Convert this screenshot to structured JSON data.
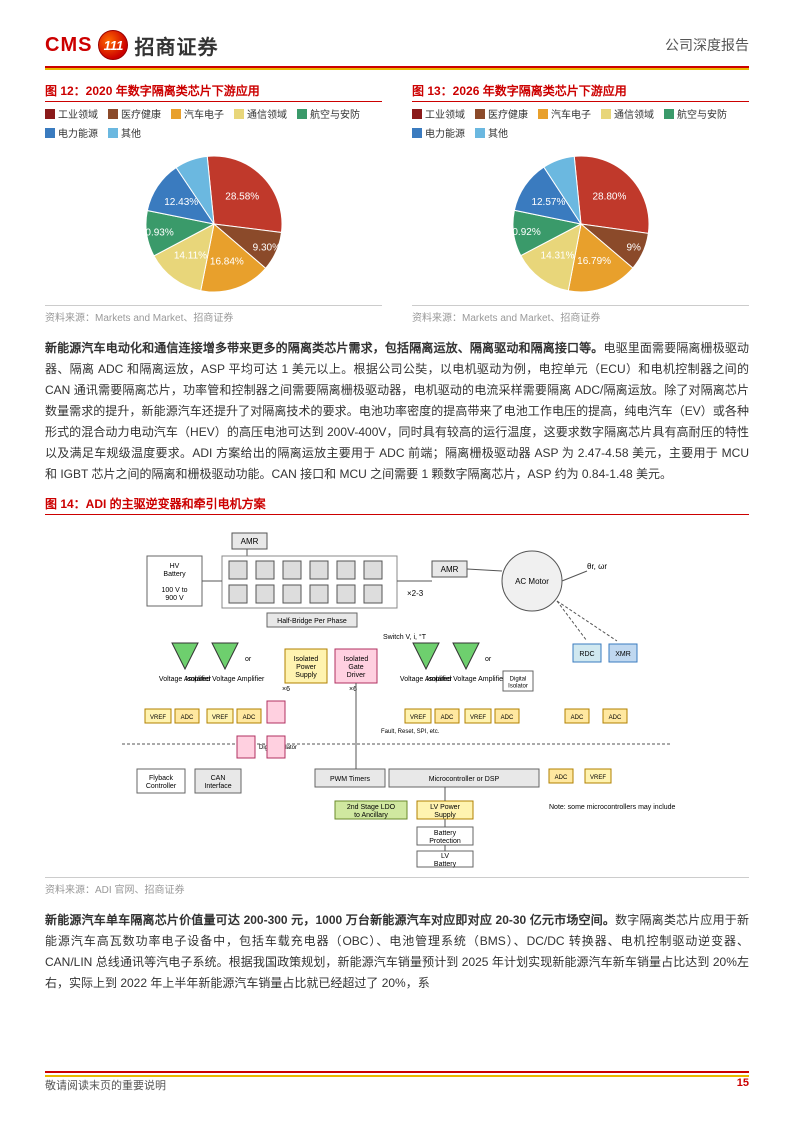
{
  "header": {
    "logo_cms": "CMS",
    "logo_badge": "111",
    "logo_cn": "招商证券",
    "doc_type": "公司深度报告"
  },
  "fig12": {
    "title": "图 12：2020 年数字隔离类芯片下游应用",
    "legend": [
      {
        "label": "工业领域",
        "color": "#8b1a1a"
      },
      {
        "label": "医疗健康",
        "color": "#8b4a2a"
      },
      {
        "label": "汽车电子",
        "color": "#e8a02c"
      },
      {
        "label": "通信领域",
        "color": "#e8d67a"
      },
      {
        "label": "航空与安防",
        "color": "#3a9a6a"
      },
      {
        "label": "电力能源",
        "color": "#3a7bbf"
      },
      {
        "label": "其他",
        "color": "#6bb8e0"
      }
    ],
    "pie": {
      "type": "pie",
      "slices": [
        {
          "label": "28.58%",
          "value": 28.58,
          "color": "#c0392b"
        },
        {
          "label": "9.30%",
          "value": 9.3,
          "color": "#8b4a2a"
        },
        {
          "label": "16.84%",
          "value": 16.84,
          "color": "#e8a02c"
        },
        {
          "label": "14.11%",
          "value": 14.11,
          "color": "#e8d67a"
        },
        {
          "label": "10.93%",
          "value": 10.93,
          "color": "#3a9a6a"
        },
        {
          "label": "12.43%",
          "value": 12.43,
          "color": "#3a7bbf"
        },
        {
          "label": "",
          "value": 7.81,
          "color": "#6bb8e0"
        }
      ],
      "radius": 68,
      "label_fontsize": 10,
      "label_color": "#ffffff"
    },
    "source": "资料来源：Markets and Market、招商证券"
  },
  "fig13": {
    "title": "图 13：2026 年数字隔离类芯片下游应用",
    "legend": [
      {
        "label": "工业领域",
        "color": "#8b1a1a"
      },
      {
        "label": "医疗健康",
        "color": "#8b4a2a"
      },
      {
        "label": "汽车电子",
        "color": "#e8a02c"
      },
      {
        "label": "通信领域",
        "color": "#e8d67a"
      },
      {
        "label": "航空与安防",
        "color": "#3a9a6a"
      },
      {
        "label": "电力能源",
        "color": "#3a7bbf"
      },
      {
        "label": "其他",
        "color": "#6bb8e0"
      }
    ],
    "pie": {
      "type": "pie",
      "slices": [
        {
          "label": "28.80%",
          "value": 28.8,
          "color": "#c0392b"
        },
        {
          "label": "9%",
          "value": 9.0,
          "color": "#8b4a2a"
        },
        {
          "label": "16.79%",
          "value": 16.79,
          "color": "#e8a02c"
        },
        {
          "label": "14.31%",
          "value": 14.31,
          "color": "#e8d67a"
        },
        {
          "label": "10.92%",
          "value": 10.92,
          "color": "#3a9a6a"
        },
        {
          "label": "12.57%",
          "value": 12.57,
          "color": "#3a7bbf"
        },
        {
          "label": "",
          "value": 7.61,
          "color": "#6bb8e0"
        }
      ],
      "radius": 68,
      "label_fontsize": 10,
      "label_color": "#ffffff"
    },
    "source": "资料来源：Markets and Market、招商证券"
  },
  "para1": {
    "lead": "新能源汽车电动化和通信连接增多带来更多的隔离类芯片需求，包括隔离运放、隔离驱动和隔离接口等。",
    "rest": "电驱里面需要隔离栅极驱动器、隔离 ADC 和隔离运放，ASP 平均可达 1 美元以上。根据公司公奘，以电机驱动为例，电控单元（ECU）和电机控制器之间的 CAN 通讯需要隔离芯片，功率管和控制器之间需要隔离栅极驱动器，电机驱动的电流采样需要隔离 ADC/隔离运放。除了对隔离芯片数量需求的提升，新能源汽车还提升了对隔离技术的要求。电池功率密度的提高带来了电池工作电压的提高，纯电汽车（EV）或各种形式的混合动力电动汽车（HEV）的高压电池可达到 200V-400V，同时具有较高的运行温度，这要求数字隔离芯片具有高耐压的特性以及满足车规级温度要求。ADI 方案给出的隔离运放主要用于 ADC 前端；隔离栅极驱动器 ASP 为 2.47-4.58 美元，主要用于 MCU 和 IGBT 芯片之间的隔离和栅极驱动功能。CAN 接口和 MCU 之间需要 1 颗数字隔离芯片，ASP 约为 0.84-1.48 美元。"
  },
  "fig14": {
    "title": "图 14：ADI 的主驱逆变器和牵引电机方案",
    "source": "资料来源：ADI 官网、招商证券",
    "diagram": {
      "type": "block-diagram",
      "hv_label": "HV",
      "lv_label": "LV",
      "blocks": {
        "amr": "AMR",
        "hv_batt": "HV\nBattery\n\n100 V to\n900 V",
        "half_bridge": "Half-Bridge Per Phase",
        "ac_motor": "AC Motor",
        "theta": "θr, ωr",
        "volt_amp": "Voltage\nAmplifier",
        "iso_volt_amp": "Isolated\nVoltage\nAmplifier",
        "iso_power": "Isolated\nPower\nSupply",
        "iso_gate": "Isolated\nGate\nDriver",
        "digital_iso": "Digital\nIsolator",
        "rdc": "RDC",
        "xmr": "XMR",
        "flyback": "Flyback\nController",
        "can": "CAN\nInterface",
        "pwm": "PWM Timers",
        "mcu": "Microcontroller or DSP",
        "lv_power": "LV Power\nSupply",
        "ldo": "2nd Stage LDO\nto Ancillary",
        "batt_prot": "Battery\nProtection",
        "lv_batt": "LV\nBattery",
        "adc": "ADC",
        "vref": "VREF",
        "note": "Note: some microcontrollers\nmay include ADCs",
        "switch_note": "Switch\nV, i, °T",
        "fault_note": "Fault,\nReset,\nSPI, etc.",
        "x6": "×6",
        "x23": "×2-3",
        "or": "or"
      }
    }
  },
  "para2": {
    "lead": "新能源汽车单车隔离芯片价值量可达 200-300 元，1000 万台新能源汽车对应即对应 20-30 亿元市场空间。",
    "rest": "数字隔离类芯片应用于新能源汽车高瓦数功率电子设备中，包括车载充电器（OBC）、电池管理系统（BMS）、DC/DC 转换器、电机控制驱动逆变器、CAN/LIN 总线通讯等汽电子系统。根据我国政策规划，新能源汽车销量预计到 2025 年计划实现新能源汽车新车销量占比达到 20%左右，实际上到 2022 年上半年新能源汽车销量占比就已经超过了 20%，系"
  },
  "footer": {
    "note": "敬请阅读末页的重要说明",
    "page": "15"
  }
}
